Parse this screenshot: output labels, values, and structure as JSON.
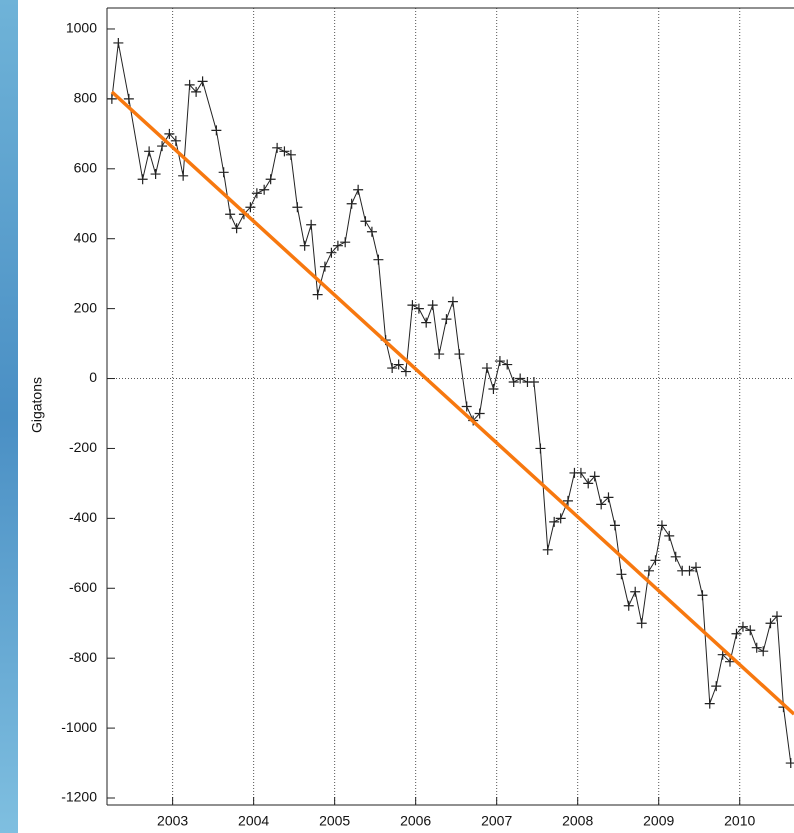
{
  "chart_data": {
    "type": "line",
    "y_label": "Gigatons",
    "xlim": [
      2002.19,
      2010.67
    ],
    "ylim": [
      -1220,
      1060
    ],
    "xticks": [
      2003,
      2004,
      2005,
      2006,
      2007,
      2008,
      2009,
      2010
    ],
    "yticks": [
      -1200,
      -1000,
      -800,
      -600,
      -400,
      -200,
      0,
      200,
      400,
      600,
      800,
      1000
    ],
    "grid": "x",
    "zero_line": true,
    "series": [
      {
        "color": "#222222",
        "marker": "plus",
        "x": [
          2002.25,
          2002.33,
          2002.46,
          2002.63,
          2002.71,
          2002.79,
          2002.87,
          2002.96,
          2003.04,
          2003.13,
          2003.21,
          2003.29,
          2003.37,
          2003.54,
          2003.63,
          2003.71,
          2003.79,
          2003.88,
          2003.96,
          2004.04,
          2004.13,
          2004.21,
          2004.29,
          2004.38,
          2004.46,
          2004.54,
          2004.63,
          2004.71,
          2004.79,
          2004.88,
          2004.96,
          2005.04,
          2005.13,
          2005.21,
          2005.29,
          2005.38,
          2005.46,
          2005.54,
          2005.63,
          2005.71,
          2005.79,
          2005.88,
          2005.96,
          2006.04,
          2006.13,
          2006.21,
          2006.29,
          2006.38,
          2006.46,
          2006.54,
          2006.63,
          2006.71,
          2006.79,
          2006.88,
          2006.96,
          2007.04,
          2007.13,
          2007.21,
          2007.29,
          2007.38,
          2007.46,
          2007.54,
          2007.63,
          2007.71,
          2007.79,
          2007.88,
          2007.96,
          2008.04,
          2008.13,
          2008.21,
          2008.29,
          2008.38,
          2008.46,
          2008.54,
          2008.63,
          2008.71,
          2008.79,
          2008.88,
          2008.96,
          2009.04,
          2009.13,
          2009.21,
          2009.29,
          2009.38,
          2009.46,
          2009.54,
          2009.63,
          2009.71,
          2009.79,
          2009.88,
          2009.96,
          2010.04,
          2010.13,
          2010.21,
          2010.29,
          2010.38,
          2010.46,
          2010.54,
          2010.63
        ],
        "values": [
          800,
          960,
          800,
          570,
          650,
          585,
          665,
          700,
          680,
          580,
          840,
          820,
          850,
          710,
          590,
          470,
          430,
          470,
          490,
          530,
          540,
          570,
          660,
          650,
          640,
          490,
          380,
          440,
          240,
          320,
          360,
          380,
          390,
          500,
          540,
          450,
          420,
          340,
          110,
          30,
          40,
          20,
          210,
          200,
          160,
          210,
          70,
          170,
          220,
          70,
          -80,
          -120,
          -100,
          30,
          -30,
          50,
          40,
          -10,
          0,
          -10,
          -10,
          -200,
          -490,
          -410,
          -400,
          -350,
          -270,
          -270,
          -300,
          -280,
          -360,
          -340,
          -420,
          -560,
          -650,
          -610,
          -700,
          -550,
          -520,
          -420,
          -450,
          -510,
          -550,
          -550,
          -540,
          -620,
          -930,
          -880,
          -790,
          -810,
          -730,
          -710,
          -720,
          -770,
          -780,
          -700,
          -680,
          -940,
          -1100
        ]
      },
      {
        "color": "#f7780f",
        "x": [
          2002.25,
          2010.67
        ],
        "values": [
          820,
          -960
        ]
      }
    ]
  }
}
